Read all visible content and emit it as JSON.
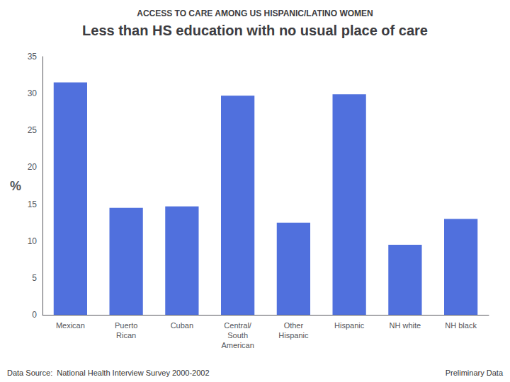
{
  "chart_data": {
    "type": "bar",
    "subtitle": "ACCESS TO CARE AMONG US HISPANIC/LATINO WOMEN",
    "title": "Less than HS education with no usual place of care",
    "categories": [
      "Mexican",
      "Puerto\nRican",
      "Cuban",
      "Central/\nSouth\nAmerican",
      "Other\nHispanic",
      "Hispanic",
      "NH white",
      "NH black"
    ],
    "values": [
      31.5,
      14.5,
      14.7,
      29.7,
      12.5,
      29.9,
      9.5,
      13.0
    ],
    "ylabel": "%",
    "ylim": [
      0,
      35
    ],
    "yticks": [
      0,
      5,
      10,
      15,
      20,
      25,
      30,
      35
    ],
    "grid": false,
    "annotations": [
      "Data Source:  National Health Interview Survey 2000-2002",
      "Preliminary Data"
    ]
  }
}
